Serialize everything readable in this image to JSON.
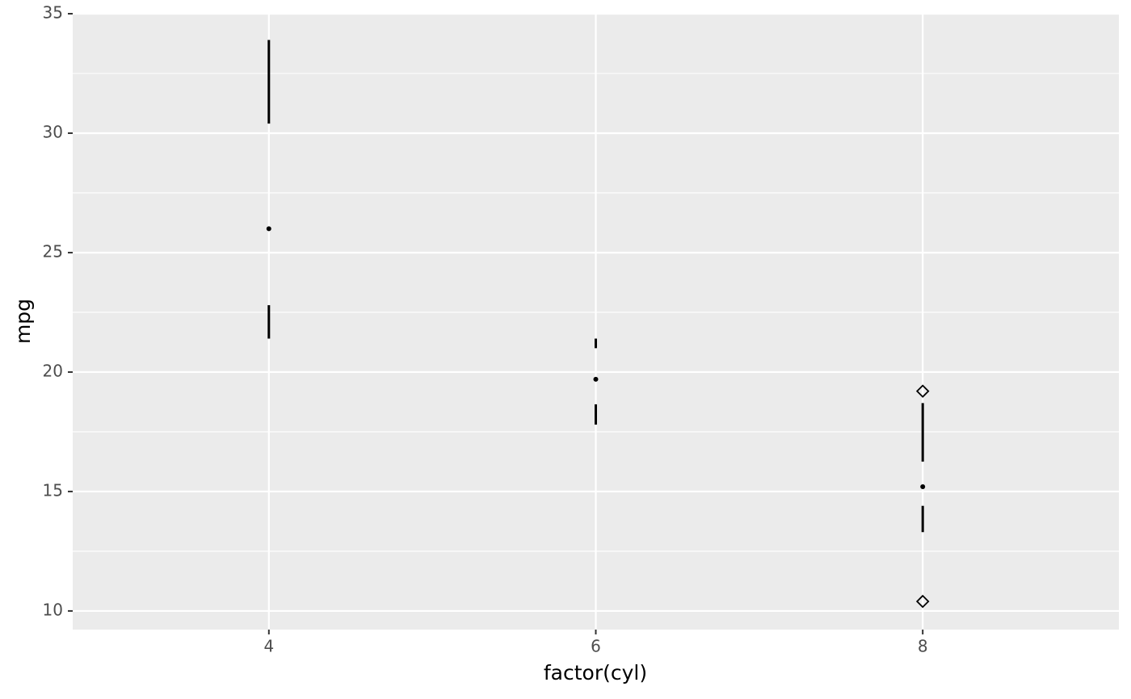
{
  "chart_data": {
    "type": "boxplot",
    "x_label": "factor(cyl)",
    "y_label": "mpg",
    "x": [
      4,
      6,
      8
    ],
    "min": [
      21.4,
      17.8,
      13.3
    ],
    "q1": [
      22.8,
      18.65,
      14.4
    ],
    "median": [
      26,
      19.7,
      15.2
    ],
    "q3": [
      30.4,
      21,
      16.25
    ],
    "max": [
      33.9,
      21.4,
      18.7
    ],
    "outliers": [
      [],
      [],
      [
        10.4,
        19.2
      ]
    ],
    "xlim": [
      2.8,
      9.2
    ],
    "xticks": [
      4,
      6,
      8
    ],
    "ylim": [
      9.22,
      35
    ],
    "yticks": [
      10,
      15,
      20,
      25,
      30,
      35
    ],
    "yminor": [
      12.5,
      17.5,
      22.5,
      27.5,
      32.5
    ],
    "grid": true,
    "color": "#000000"
  }
}
